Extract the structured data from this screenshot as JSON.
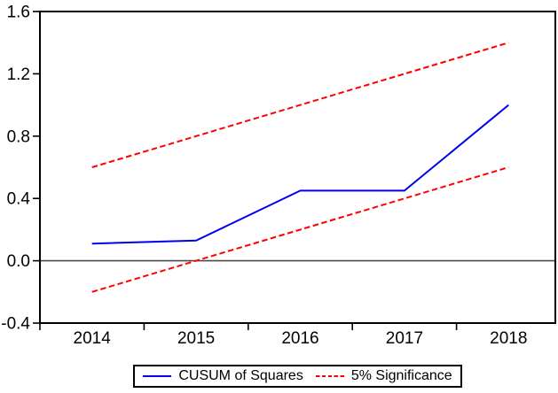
{
  "figure": {
    "background_color": "#ffffff",
    "frame_color": "#000000",
    "zero_line_color": "#4a4a4a",
    "tick_label_color": "#000000"
  },
  "chart_data": {
    "type": "line",
    "title": "",
    "xlabel": "",
    "ylabel": "",
    "x": [
      2014,
      2015,
      2016,
      2017,
      2018
    ],
    "x_tick_labels": [
      "2014",
      "2015",
      "2016",
      "2017",
      "2018"
    ],
    "series": [
      {
        "name": "CUSUM of Squares",
        "color": "#0000ee",
        "style": "solid",
        "values": [
          0.11,
          0.13,
          0.45,
          0.45,
          1.0
        ]
      },
      {
        "name": "5% Significance upper bound",
        "color": "#ff0000",
        "style": "dashed",
        "values": [
          0.6,
          0.8,
          1.0,
          1.2,
          1.4
        ]
      },
      {
        "name": "5% Significance lower bound",
        "color": "#ff0000",
        "style": "dashed",
        "values": [
          -0.2,
          0.0,
          0.2,
          0.4,
          0.6
        ]
      }
    ],
    "ylim": [
      -0.4,
      1.6
    ],
    "yticks": [
      -0.4,
      0.0,
      0.4,
      0.8,
      1.2,
      1.6
    ],
    "ytick_labels": [
      "-0.4",
      "0.0",
      "0.4",
      "0.8",
      "1.2",
      "1.6"
    ],
    "zero_line": true,
    "grid": false,
    "legend": {
      "position": "bottom-center",
      "border": true,
      "entries": [
        {
          "label": "CUSUM of Squares",
          "color": "#0000ee",
          "style": "solid"
        },
        {
          "label": "5% Significance",
          "color": "#ff0000",
          "style": "dashed"
        }
      ]
    }
  }
}
